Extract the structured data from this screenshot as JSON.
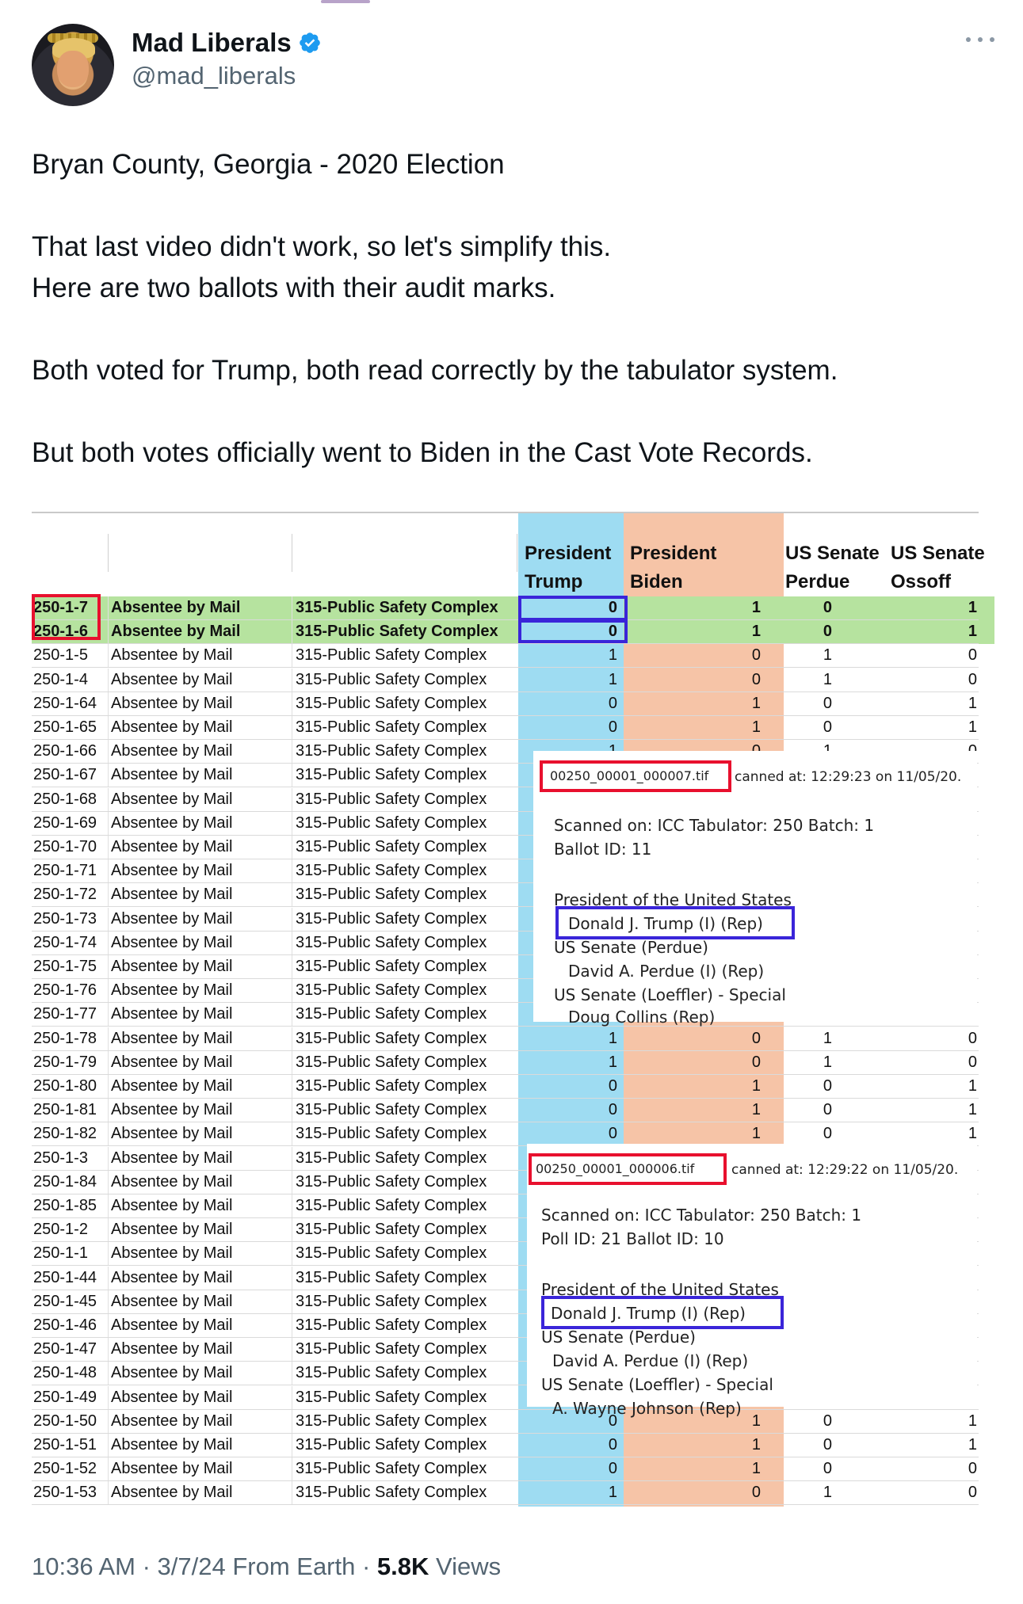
{
  "author": {
    "display_name": "Mad Liberals",
    "handle": "@mad_liberals"
  },
  "tweet": {
    "lines": [
      "Bryan County, Georgia - 2020 Election",
      "That last video didn't work, so let's simplify this.",
      "Here are two ballots with their audit marks.",
      "Both voted for Trump, both read correctly by the tabulator system.",
      "But both votes officially went to Biden in the Cast Vote Records."
    ]
  },
  "spreadsheet": {
    "headers": {
      "trump_1": "President",
      "trump_2": "Trump",
      "biden_1": "President",
      "biden_2": "Biden",
      "perdue_1": "US Senate",
      "perdue_2": "Perdue",
      "ossoff_1": "US Senate",
      "ossoff_2": "Ossoff"
    },
    "rows": [
      {
        "id": "250-1-7",
        "type": "Absentee by Mail",
        "loc": "315-Public Safety Complex",
        "trump": "0",
        "biden": "1",
        "perdue": "0",
        "ossoff": "1"
      },
      {
        "id": "250-1-6",
        "type": "Absentee by Mail",
        "loc": "315-Public Safety Complex",
        "trump": "0",
        "biden": "1",
        "perdue": "0",
        "ossoff": "1"
      },
      {
        "id": "250-1-5",
        "type": "Absentee by Mail",
        "loc": "315-Public Safety Complex",
        "trump": "1",
        "biden": "0",
        "perdue": "1",
        "ossoff": "0"
      },
      {
        "id": "250-1-4",
        "type": "Absentee by Mail",
        "loc": "315-Public Safety Complex",
        "trump": "1",
        "biden": "0",
        "perdue": "1",
        "ossoff": "0"
      },
      {
        "id": "250-1-64",
        "type": "Absentee by Mail",
        "loc": "315-Public Safety Complex",
        "trump": "0",
        "biden": "1",
        "perdue": "0",
        "ossoff": "1"
      },
      {
        "id": "250-1-65",
        "type": "Absentee by Mail",
        "loc": "315-Public Safety Complex",
        "trump": "0",
        "biden": "1",
        "perdue": "0",
        "ossoff": "1"
      },
      {
        "id": "250-1-66",
        "type": "Absentee by Mail",
        "loc": "315-Public Safety Complex",
        "trump": "1",
        "biden": "0",
        "perdue": "1",
        "ossoff": "0"
      },
      {
        "id": "250-1-67",
        "type": "Absentee by Mail",
        "loc": "315-Public Safety Complex",
        "trump": "",
        "biden": "",
        "perdue": "",
        "ossoff": "L"
      },
      {
        "id": "250-1-68",
        "type": "Absentee by Mail",
        "loc": "315-Public Safety Complex",
        "trump": "",
        "biden": "",
        "perdue": "",
        "ossoff": ")"
      },
      {
        "id": "250-1-69",
        "type": "Absentee by Mail",
        "loc": "315-Public Safety Complex",
        "trump": "",
        "biden": "",
        "perdue": "",
        "ossoff": "L"
      },
      {
        "id": "250-1-70",
        "type": "Absentee by Mail",
        "loc": "315-Public Safety Complex",
        "trump": "",
        "biden": "",
        "perdue": "",
        "ossoff": "L"
      },
      {
        "id": "250-1-71",
        "type": "Absentee by Mail",
        "loc": "315-Public Safety Complex",
        "trump": "",
        "biden": "",
        "perdue": "",
        "ossoff": "L"
      },
      {
        "id": "250-1-72",
        "type": "Absentee by Mail",
        "loc": "315-Public Safety Complex",
        "trump": "",
        "biden": "",
        "perdue": "",
        "ossoff": "L"
      },
      {
        "id": "250-1-73",
        "type": "Absentee by Mail",
        "loc": "315-Public Safety Complex",
        "trump": "",
        "biden": "",
        "perdue": "",
        "ossoff": "L"
      },
      {
        "id": "250-1-74",
        "type": "Absentee by Mail",
        "loc": "315-Public Safety Complex",
        "trump": "",
        "biden": "",
        "perdue": "",
        "ossoff": "L"
      },
      {
        "id": "250-1-75",
        "type": "Absentee by Mail",
        "loc": "315-Public Safety Complex",
        "trump": "",
        "biden": "",
        "perdue": "",
        "ossoff": "L"
      },
      {
        "id": "250-1-76",
        "type": "Absentee by Mail",
        "loc": "315-Public Safety Complex",
        "trump": "",
        "biden": "",
        "perdue": "",
        "ossoff": "L"
      },
      {
        "id": "250-1-77",
        "type": "Absentee by Mail",
        "loc": "315-Public Safety Complex",
        "trump": "",
        "biden": "",
        "perdue": "",
        "ossoff": ")"
      },
      {
        "id": "250-1-78",
        "type": "Absentee by Mail",
        "loc": "315-Public Safety Complex",
        "trump": "1",
        "biden": "0",
        "perdue": "1",
        "ossoff": "0"
      },
      {
        "id": "250-1-79",
        "type": "Absentee by Mail",
        "loc": "315-Public Safety Complex",
        "trump": "1",
        "biden": "0",
        "perdue": "1",
        "ossoff": "0"
      },
      {
        "id": "250-1-80",
        "type": "Absentee by Mail",
        "loc": "315-Public Safety Complex",
        "trump": "0",
        "biden": "1",
        "perdue": "0",
        "ossoff": "1"
      },
      {
        "id": "250-1-81",
        "type": "Absentee by Mail",
        "loc": "315-Public Safety Complex",
        "trump": "0",
        "biden": "1",
        "perdue": "0",
        "ossoff": "1"
      },
      {
        "id": "250-1-82",
        "type": "Absentee by Mail",
        "loc": "315-Public Safety Complex",
        "trump": "0",
        "biden": "1",
        "perdue": "0",
        "ossoff": "1"
      },
      {
        "id": "250-1-3",
        "type": "Absentee by Mail",
        "loc": "315-Public Safety Complex",
        "trump": "",
        "biden": "",
        "perdue": "",
        "ossoff": ""
      },
      {
        "id": "250-1-84",
        "type": "Absentee by Mail",
        "loc": "315-Public Safety Complex",
        "trump": "",
        "biden": "",
        "perdue": "",
        "ossoff": ""
      },
      {
        "id": "250-1-85",
        "type": "Absentee by Mail",
        "loc": "315-Public Safety Complex",
        "trump": "",
        "biden": "",
        "perdue": "",
        "ossoff": ""
      },
      {
        "id": "250-1-2",
        "type": "Absentee by Mail",
        "loc": "315-Public Safety Complex",
        "trump": "",
        "biden": "",
        "perdue": "",
        "ossoff": ""
      },
      {
        "id": "250-1-1",
        "type": "Absentee by Mail",
        "loc": "315-Public Safety Complex",
        "trump": "",
        "biden": "",
        "perdue": "",
        "ossoff": ""
      },
      {
        "id": "250-1-44",
        "type": "Absentee by Mail",
        "loc": "315-Public Safety Complex",
        "trump": "",
        "biden": "",
        "perdue": "",
        "ossoff": ""
      },
      {
        "id": "250-1-45",
        "type": "Absentee by Mail",
        "loc": "315-Public Safety Complex",
        "trump": "",
        "biden": "",
        "perdue": "",
        "ossoff": ""
      },
      {
        "id": "250-1-46",
        "type": "Absentee by Mail",
        "loc": "315-Public Safety Complex",
        "trump": "",
        "biden": "",
        "perdue": "",
        "ossoff": ""
      },
      {
        "id": "250-1-47",
        "type": "Absentee by Mail",
        "loc": "315-Public Safety Complex",
        "trump": "",
        "biden": "",
        "perdue": "",
        "ossoff": ""
      },
      {
        "id": "250-1-48",
        "type": "Absentee by Mail",
        "loc": "315-Public Safety Complex",
        "trump": "",
        "biden": "",
        "perdue": "",
        "ossoff": ""
      },
      {
        "id": "250-1-49",
        "type": "Absentee by Mail",
        "loc": "315-Public Safety Complex",
        "trump": "",
        "biden": "",
        "perdue": "",
        "ossoff": ""
      },
      {
        "id": "250-1-50",
        "type": "Absentee by Mail",
        "loc": "315-Public Safety Complex",
        "trump": "0",
        "biden": "1",
        "perdue": "0",
        "ossoff": "1"
      },
      {
        "id": "250-1-51",
        "type": "Absentee by Mail",
        "loc": "315-Public Safety Complex",
        "trump": "0",
        "biden": "1",
        "perdue": "0",
        "ossoff": "1"
      },
      {
        "id": "250-1-52",
        "type": "Absentee by Mail",
        "loc": "315-Public Safety Complex",
        "trump": "0",
        "biden": "1",
        "perdue": "0",
        "ossoff": "0"
      },
      {
        "id": "250-1-53",
        "type": "Absentee by Mail",
        "loc": "315-Public Safety Complex",
        "trump": "1",
        "biden": "0",
        "perdue": "1",
        "ossoff": "0"
      }
    ]
  },
  "ballot_1": {
    "filename": "00250_00001_000007.tif",
    "scanned": "canned at: 12:29:23 on 11/05/20.",
    "line1": "Scanned on: ICC   Tabulator: 250    Batch:  1",
    "line2": "Ballot ID:  11",
    "race1": "President of the United States",
    "choice1": "Donald J. Trump (I) (Rep)",
    "race2": "US Senate (Perdue)",
    "choice2": "David A. Perdue (I) (Rep)",
    "race3": "US Senate (Loeffler) - Special",
    "choice3": "Doug Collins (Rep)"
  },
  "ballot_2": {
    "filename": "00250_00001_000006.tif",
    "scanned": "canned at: 12:29:22 on 11/05/20.",
    "line1": "Scanned on: ICC   Tabulator: 250    Batch:  1",
    "line2": "Poll ID:    21   Ballot ID:  10",
    "race1": "President of the United States",
    "choice1": "Donald J. Trump (I) (Rep)",
    "race2": "US Senate (Perdue)",
    "choice2": "David A. Perdue (I) (Rep)",
    "race3": "US Senate (Loeffler) - Special",
    "choice3": "A. Wayne Johnson (Rep)"
  },
  "meta": {
    "time_date": "10:36 AM · 3/7/24 From Earth · ",
    "views_count": "5.8K",
    "views_label": " Views"
  },
  "colors": {
    "verified_blue": "#1d9bf0",
    "highlight_red": "#e8102e",
    "highlight_blue": "#3a25d9",
    "trump_column": "#9edcf2",
    "biden_column": "#f6c4a7",
    "green_row": "#b6e39f"
  },
  "icons": [
    "avatar",
    "verified-badge-icon",
    "more-options-icon"
  ]
}
